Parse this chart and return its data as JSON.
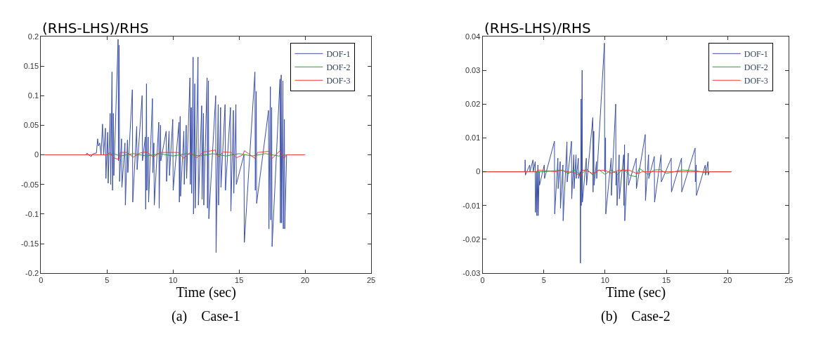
{
  "chart_data": [
    {
      "type": "line",
      "ylabel": "(RHS-LHS)/RHS",
      "xlabel": "Time (sec)",
      "annotations": [
        "(a)    Case-1"
      ],
      "xlim": [
        0,
        25
      ],
      "xticks": [
        0,
        5,
        10,
        15,
        20,
        25
      ],
      "ylim": [
        -0.2,
        0.2
      ],
      "yticks": [
        -0.2,
        -0.15,
        -0.1,
        -0.05,
        0,
        0.05,
        0.1,
        0.15,
        0.2
      ],
      "legend": "top right",
      "marker": "none",
      "line_style": "solid",
      "series": [
        {
          "name": "DOF-1",
          "color": "#3a4fa8",
          "x": [
            0,
            3.4,
            3.5,
            3.6,
            3.8,
            3.9,
            4.0,
            4.2,
            4.29,
            4.35,
            4.45,
            4.55,
            4.66,
            4.75,
            4.88,
            4.92,
            5.05,
            5.09,
            5.24,
            5.28,
            5.38,
            5.42,
            5.48,
            5.52,
            5.84,
            5.87,
            5.92,
            5.95,
            6.1,
            6.13,
            6.36,
            6.39,
            6.55,
            6.58,
            6.92,
            6.95,
            7.25,
            7.28,
            7.66,
            7.69,
            7.9,
            7.93,
            7.99,
            8.02,
            8.12,
            8.15,
            8.44,
            8.47,
            8.55,
            8.58,
            8.92,
            8.95,
            9.05,
            9.08,
            9.48,
            9.51,
            9.7,
            9.73,
            9.98,
            10.01,
            10.45,
            10.48,
            10.54,
            10.57,
            10.82,
            10.85,
            11.0,
            11.03,
            11.28,
            11.31,
            11.38,
            11.41,
            11.52,
            11.55,
            11.65,
            11.68,
            11.89,
            11.92,
            12.17,
            12.2,
            12.3,
            12.33,
            12.58,
            12.61,
            12.68,
            12.71,
            13.23,
            13.26,
            13.42,
            13.45,
            13.6,
            13.63,
            13.94,
            13.97,
            14.35,
            14.38,
            14.57,
            14.6,
            14.76,
            14.79,
            15.37,
            15.4,
            16.2,
            16.23,
            16.3,
            16.33,
            17.23,
            17.26,
            17.37,
            17.4,
            17.47,
            17.5,
            18.1,
            18.13,
            18.19,
            18.22,
            18.32,
            18.35,
            18.43,
            18.46,
            18.6,
            20
          ],
          "values": [
            0,
            0,
            0.003,
            0,
            -0.003,
            0.001,
            0.002,
            0.003,
            0.027,
            0.015,
            0.02,
            0.0,
            0.052,
            0.0,
            0.045,
            -0.04,
            0.038,
            -0.048,
            0.07,
            -0.05,
            0.14,
            -0.06,
            0.07,
            -0.035,
            0.195,
            -0.01,
            0.185,
            -0.045,
            0.027,
            -0.055,
            0.02,
            -0.085,
            0.025,
            -0.03,
            0.11,
            -0.08,
            0.048,
            -0.025,
            0.1,
            -0.01,
            0.03,
            -0.092,
            0.12,
            -0.06,
            0.03,
            -0.08,
            0.095,
            -0.03,
            0.02,
            -0.085,
            0.055,
            -0.09,
            0.05,
            -0.01,
            0.04,
            -0.045,
            0.04,
            -0.035,
            0.06,
            -0.06,
            0.055,
            -0.08,
            0.065,
            -0.07,
            0.04,
            -0.05,
            0.05,
            -0.04,
            0.13,
            -0.05,
            0.08,
            -0.065,
            0.165,
            -0.1,
            0.12,
            -0.09,
            0.165,
            -0.085,
            0.083,
            -0.075,
            0.07,
            -0.085,
            0.13,
            -0.09,
            0.125,
            -0.108,
            0.1,
            -0.165,
            0.085,
            -0.085,
            0.08,
            -0.055,
            0.085,
            -0.06,
            0.08,
            -0.095,
            0.075,
            -0.065,
            0.085,
            -0.05,
            0.0,
            -0.148,
            0.14,
            -0.06,
            0.107,
            -0.082,
            0.075,
            -0.125,
            0.115,
            -0.11,
            0.08,
            -0.155,
            0.128,
            -0.115,
            0.135,
            -0.115,
            0.125,
            -0.125,
            0.06,
            -0.125,
            0,
            0
          ]
        },
        {
          "name": "DOF-2",
          "color": "#2e9a3a",
          "x": [
            0,
            5.0,
            5.5,
            6.0,
            7.0,
            8.0,
            9.0,
            10.0,
            11.0,
            12.0,
            13.0,
            14.0,
            15.0,
            16.0,
            17.0,
            18.0,
            18.6,
            20
          ],
          "values": [
            0,
            0,
            0.002,
            -0.002,
            0.002,
            -0.002,
            0.002,
            -0.002,
            0.002,
            -0.002,
            0.002,
            -0.002,
            0.002,
            -0.002,
            0.002,
            -0.002,
            0,
            0
          ]
        },
        {
          "name": "DOF-3",
          "color": "#f03c3c",
          "x": [
            0,
            5.0,
            5.2,
            5.5,
            5.9,
            6.0,
            6.5,
            7.0,
            7.5,
            8.0,
            8.5,
            9.0,
            10.4,
            10.8,
            11.3,
            11.8,
            12.3,
            12.7,
            13.2,
            13.4,
            13.8,
            14.4,
            14.8,
            15.3,
            15.4,
            16.2,
            16.4,
            17.3,
            17.5,
            18.1,
            18.4,
            18.6,
            20
          ],
          "values": [
            0,
            0,
            0.004,
            -0.005,
            -0.008,
            0.004,
            0.004,
            -0.004,
            0.003,
            0.005,
            -0.004,
            0.004,
            0.004,
            -0.006,
            0.004,
            -0.005,
            0.005,
            0.006,
            0.008,
            -0.004,
            0.005,
            0.004,
            -0.005,
            0.0,
            0.007,
            -0.006,
            0.004,
            0.006,
            -0.006,
            0.007,
            -0.006,
            0,
            0
          ]
        }
      ]
    },
    {
      "type": "line",
      "ylabel": "(RHS-LHS)/RHS",
      "xlabel": "Time (sec)",
      "annotations": [
        "(b)    Case-2"
      ],
      "xlim": [
        0,
        25
      ],
      "xticks": [
        0,
        5,
        10,
        15,
        20,
        25
      ],
      "ylim": [
        -0.03,
        0.04
      ],
      "yticks": [
        -0.03,
        -0.02,
        -0.01,
        0,
        0.01,
        0.02,
        0.03,
        0.04
      ],
      "legend": "top right",
      "marker": "none",
      "line_style": "solid",
      "series": [
        {
          "name": "DOF-1",
          "color": "#3a4fa8",
          "x": [
            0,
            3.46,
            3.48,
            3.5,
            3.85,
            3.87,
            4.12,
            4.14,
            4.3,
            4.32,
            4.41,
            4.43,
            4.52,
            4.54,
            4.63,
            4.65,
            5.04,
            5.06,
            5.87,
            5.89,
            6.15,
            6.17,
            6.34,
            6.36,
            6.56,
            6.58,
            6.89,
            6.91,
            7.26,
            7.28,
            7.45,
            7.47,
            7.63,
            7.65,
            7.82,
            7.84,
            7.97,
            7.99,
            8.04,
            8.06,
            8.13,
            8.15,
            8.47,
            8.49,
            9.0,
            9.02,
            9.08,
            9.1,
            9.3,
            9.32,
            9.95,
            9.97,
            10.04,
            10.06,
            10.5,
            10.52,
            10.87,
            10.89,
            10.96,
            10.98,
            11.15,
            11.17,
            11.52,
            11.54,
            11.59,
            11.61,
            11.89,
            11.91,
            12.54,
            12.56,
            13.28,
            13.3,
            13.55,
            13.57,
            14.02,
            14.04,
            14.57,
            14.59,
            15.4,
            15.42,
            16.24,
            16.26,
            17.35,
            17.37,
            17.44,
            17.46,
            18.18,
            18.2,
            18.4,
            18.42,
            18.5,
            20.3
          ],
          "values": [
            0,
            0,
            0.0035,
            -0.001,
            0.002,
            0,
            0.0035,
            0,
            0.003,
            -0.012,
            0,
            -0.013,
            0.002,
            -0.013,
            0,
            -0.004,
            0.002,
            -0.002,
            0.009,
            -0.0125,
            0.004,
            -0.005,
            0.003,
            -0.0108,
            0.002,
            -0.0145,
            0.0088,
            -0.003,
            0.009,
            -0.008,
            0.005,
            -0.005,
            0.005,
            -0.002,
            0.004,
            -0.002,
            0,
            -0.027,
            0.0215,
            -0.01,
            0.03,
            -0.009,
            0.004,
            -0.004,
            0.016,
            -0.006,
            0.012,
            -0.004,
            0.003,
            -0.002,
            0.038,
            0,
            0.01,
            -0.0125,
            0.004,
            -0.007,
            0.02,
            -0.004,
            0,
            -0.01,
            0.005,
            -0.008,
            0.005,
            -0.01,
            0.008,
            -0.0145,
            0.0055,
            -0.004,
            0.004,
            -0.005,
            0.011,
            -0.0085,
            0.005,
            -0.002,
            0.0045,
            -0.009,
            0.005,
            -0.003,
            0.004,
            -0.006,
            0.004,
            -0.006,
            0.007,
            -0.003,
            0.002,
            -0.007,
            0.002,
            -0.001,
            0.003,
            -0.001,
            0,
            0
          ]
        },
        {
          "name": "DOF-2",
          "color": "#2e9a3a",
          "x": [
            0,
            5.0,
            6.5,
            7.0,
            7.5,
            8.0,
            8.5,
            9.0,
            9.5,
            10.0,
            10.5,
            11.0,
            11.5,
            12.0,
            12.5,
            12.8,
            13.5,
            14.0,
            14.5,
            15.0,
            16.3,
            17.4,
            18.2,
            18.5,
            20.3
          ],
          "values": [
            0,
            0,
            0.0005,
            -0.0005,
            0.0005,
            -0.001,
            0.0008,
            -0.001,
            0.0006,
            -0.0008,
            0.0006,
            -0.0008,
            0.0008,
            -0.001,
            -0.0015,
            0.001,
            -0.0008,
            0.0005,
            0.0006,
            -0.0005,
            0.0005,
            0.0003,
            -0.0003,
            0,
            0
          ]
        },
        {
          "name": "DOF-3",
          "color": "#f03c3c",
          "x": [
            0,
            4.4,
            4.5,
            6.0,
            6.3,
            7.5,
            8.0,
            8.2,
            8.5,
            9.0,
            9.5,
            10.0,
            10.5,
            11.0,
            11.5,
            12.0,
            12.5,
            12.8,
            13.0,
            20.3
          ],
          "values": [
            0,
            0,
            0.0005,
            0,
            0.0004,
            -0.0003,
            -0.0012,
            0.0005,
            0.0003,
            -0.0005,
            0.0004,
            0.0004,
            -0.0004,
            0.0003,
            0.0005,
            0.0004,
            -0.0004,
            -0.0004,
            0,
            0
          ]
        }
      ]
    }
  ]
}
